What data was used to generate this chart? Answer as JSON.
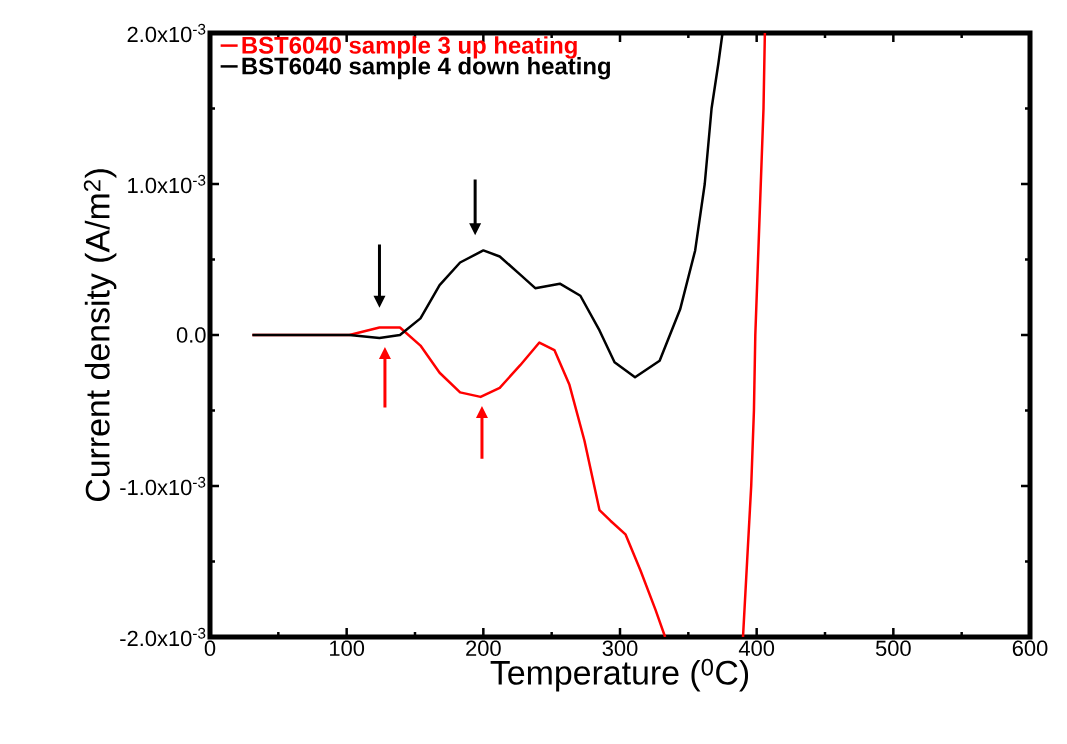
{
  "chart_data": {
    "type": "line",
    "xlabel": "Temperature ($^{0}$C)",
    "ylabel": "Current density (A/m$^{2}$)",
    "xlim": [
      0,
      600
    ],
    "xticks": [
      0,
      100,
      200,
      300,
      400,
      500,
      600
    ],
    "ylim": [
      -0.002,
      0.002
    ],
    "yticks": [
      {
        "value": -0.002,
        "label": "-2.0x10$^{-3}$"
      },
      {
        "value": -0.001,
        "label": "-1.0x10$^{-3}$"
      },
      {
        "value": 0,
        "label": "0.0"
      },
      {
        "value": 0.001,
        "label": "1.0x10$^{-3}$"
      },
      {
        "value": 0.002,
        "label": "2.0x10$^{-3}$"
      }
    ],
    "legend": "top left",
    "line_style": "solid",
    "marker": "none",
    "grid": false,
    "series": [
      {
        "name": "BST6040 sample 3 up heating",
        "color": "#ff0000",
        "x": [
          31,
          102,
          124,
          139,
          154,
          168,
          183,
          198,
          212,
          227,
          241,
          252,
          263,
          274,
          285,
          293,
          304,
          315,
          326,
          333,
          360,
          390,
          393,
          396,
          398,
          399,
          401,
          403,
          405,
          406
        ],
        "values": [
          0,
          0,
          5e-05,
          5e-05,
          -7e-05,
          -0.00025,
          -0.00038,
          -0.00041,
          -0.00035,
          -0.0002,
          -5e-05,
          -0.0001,
          -0.00033,
          -0.0007,
          -0.00116,
          -0.00123,
          -0.00132,
          -0.00156,
          -0.00182,
          -0.002,
          null,
          -0.002,
          -0.0015,
          -0.001,
          -0.0005,
          0,
          0.0005,
          0.001,
          0.0015,
          0.002
        ]
      },
      {
        "name": "BST6040 sample 4 down heating",
        "color": "#000000",
        "x": [
          31,
          102,
          124,
          139,
          154,
          168,
          183,
          200,
          212,
          227,
          238,
          256,
          271,
          285,
          296,
          311,
          329,
          344,
          355,
          362,
          367,
          372,
          375
        ],
        "values": [
          0,
          0,
          -2e-05,
          0,
          0.00011,
          0.00033,
          0.00048,
          0.00056,
          0.00052,
          0.0004,
          0.00031,
          0.00034,
          0.00026,
          3e-05,
          -0.00018,
          -0.00028,
          -0.00017,
          0.00017,
          0.00056,
          0.001,
          0.0015,
          0.0018,
          0.002
        ]
      }
    ]
  }
}
